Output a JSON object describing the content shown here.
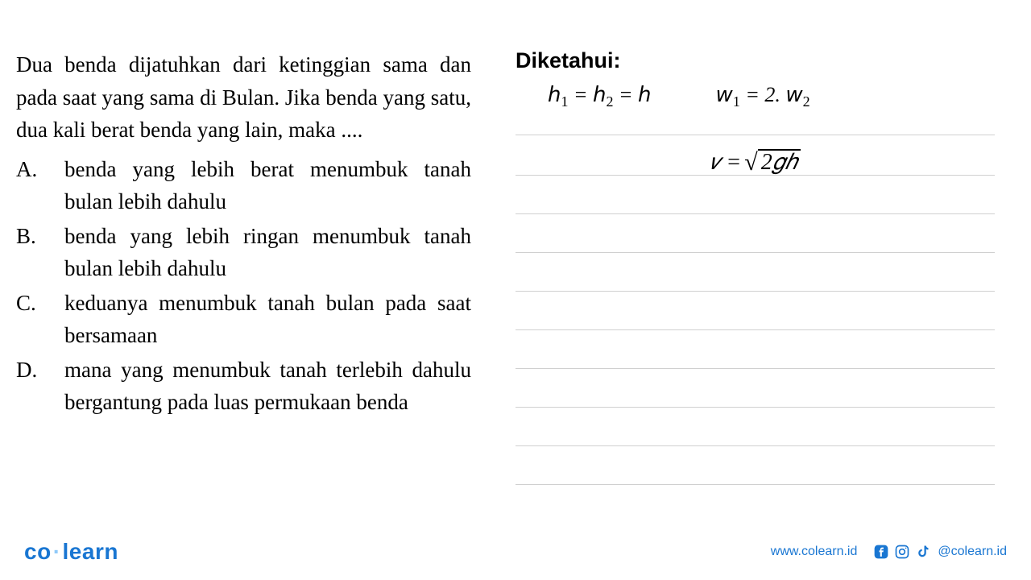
{
  "question": {
    "stem": "Dua benda dijatuhkan dari ketinggian sama dan pada saat yang sama di Bulan. Jika benda yang satu, dua kali berat benda yang lain, maka ....",
    "options": [
      {
        "label": "A.",
        "text": "benda yang lebih berat menumbuk tanah bulan lebih dahulu"
      },
      {
        "label": "B.",
        "text": "benda yang lebih ringan menumbuk tanah bulan lebih dahulu"
      },
      {
        "label": "C.",
        "text": "keduanya menumbuk tanah bulan pada saat bersamaan"
      },
      {
        "label": "D.",
        "text": "mana yang menumbuk tanah terlebih dahulu bergantung pada luas permukaan benda"
      }
    ]
  },
  "work": {
    "title": "Diketahui:",
    "given": {
      "heights_html": "𝘩<span class=\"sub\">1</span> = 𝘩<span class=\"sub\">2</span> = 𝘩",
      "weights_html": "𝘸<span class=\"sub\">1</span> = 2. 𝘸<span class=\"sub\">2</span>"
    },
    "formula": {
      "lhs": "𝑣 = ",
      "sqrt_arg": "2𝑔ℎ"
    },
    "rules": {
      "line_color": "#d0d0d0",
      "positions": [
        0,
        50,
        98,
        146,
        194,
        242,
        290,
        338,
        386,
        434
      ]
    }
  },
  "footer": {
    "brand_a": "co",
    "brand_b": "learn",
    "url": "www.colearn.id",
    "handle": "@colearn.id",
    "icon_color": "#1976d2"
  },
  "colors": {
    "text": "#000000",
    "brand": "#1976d2",
    "background": "#ffffff"
  }
}
